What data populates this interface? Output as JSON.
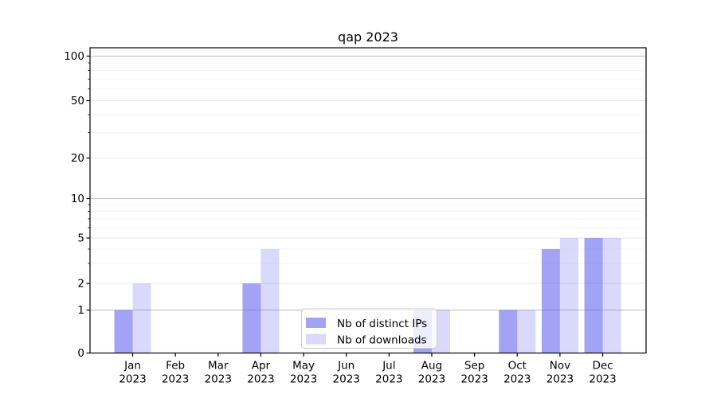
{
  "chart_data": {
    "type": "bar",
    "title": "qap 2023",
    "categories": [
      "Jan",
      "Feb",
      "Mar",
      "Apr",
      "May",
      "Jun",
      "Jul",
      "Aug",
      "Sep",
      "Oct",
      "Nov",
      "Dec"
    ],
    "year": "2023",
    "series": [
      {
        "name": "Nb of distinct IPs",
        "values": [
          1,
          0,
          0,
          2,
          0,
          0,
          0,
          1,
          0,
          1,
          4,
          5
        ],
        "fill": "rgba(102,102,238,0.6)"
      },
      {
        "name": "Nb of downloads",
        "values": [
          2,
          0,
          0,
          4,
          0,
          0,
          0,
          1,
          0,
          1,
          5,
          5
        ],
        "fill": "rgba(102,102,238,0.25)"
      }
    ],
    "yscale": "symlog-like",
    "ylim": [
      0,
      115
    ],
    "yticks": [
      0,
      1,
      2,
      5,
      10,
      20,
      50,
      100
    ],
    "ytick_labels": [
      "0",
      "1",
      "2",
      "5",
      "10",
      "20",
      "50",
      "100"
    ],
    "major_gridlines": [
      2,
      5,
      20,
      50
    ],
    "emphasized_gridlines": [
      1,
      10,
      100
    ],
    "minor_gridlines": [
      3,
      4,
      6,
      7,
      8,
      9,
      30,
      40,
      60,
      70,
      80,
      90
    ],
    "grid": true,
    "legend_position": "lower center-right"
  },
  "legend": {
    "items": [
      "Nb of distinct IPs",
      "Nb of downloads"
    ]
  },
  "colors": {
    "bar_base": "#6666ee",
    "bar_ips": "rgba(102,102,238,0.6)",
    "bar_downloads": "rgba(102,102,238,0.25)",
    "grid_minor": "#f4f4f4",
    "grid_major": "#e9e9e9",
    "grid_emphasis": "#bcbcbc",
    "axis": "#000000",
    "legend_border": "#cccccc",
    "legend_bg": "rgba(255,255,255,0.8)",
    "text": "#000000"
  }
}
